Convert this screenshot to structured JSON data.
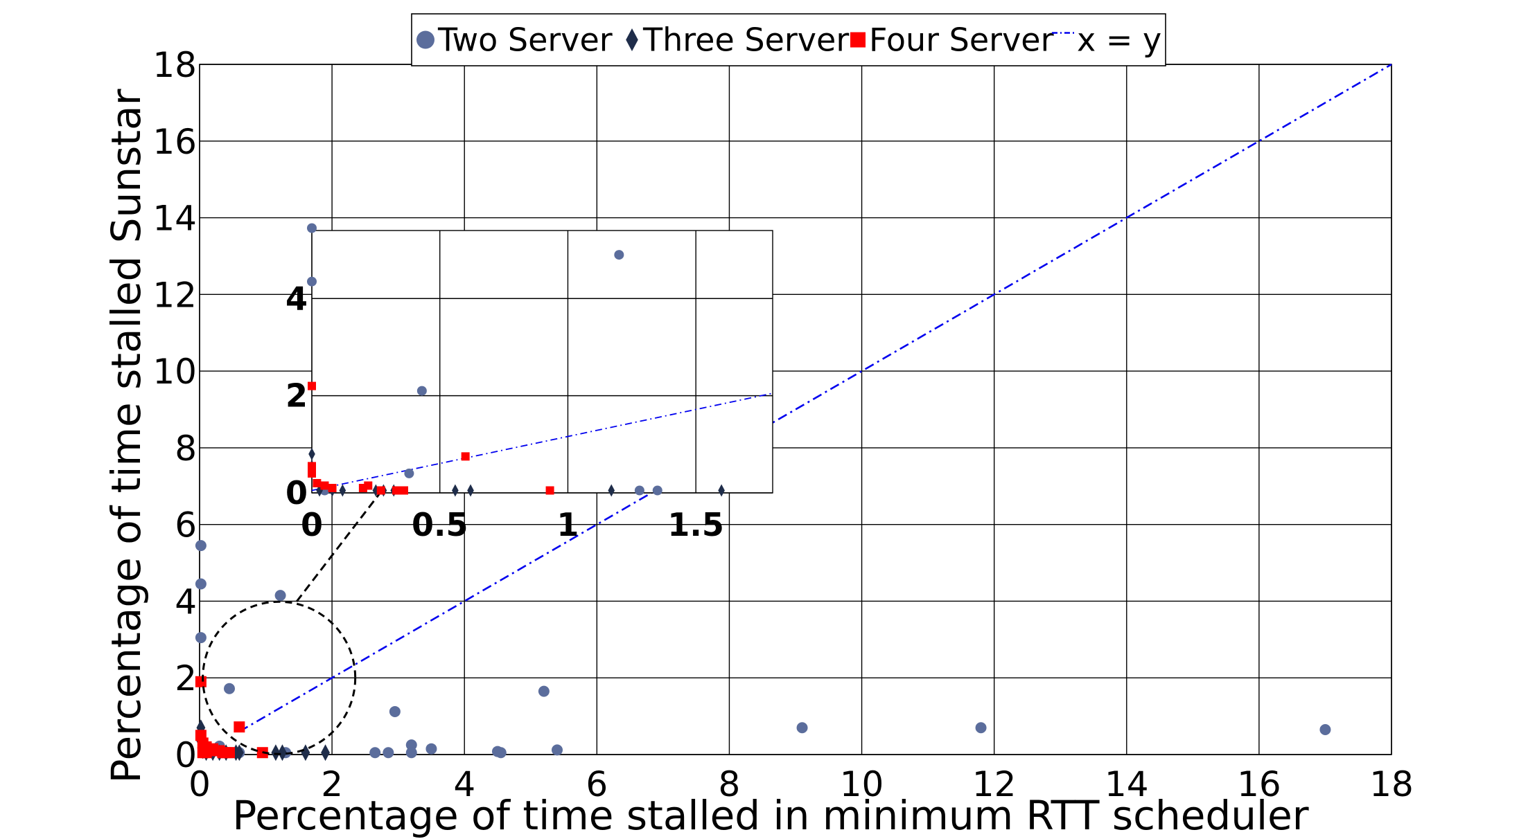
{
  "chart_data": {
    "type": "scatter",
    "xlabel": "Percentage of time stalled in minimum RTT scheduler",
    "ylabel": "Percentage of time stalled Sunstar",
    "xlim": [
      0,
      18
    ],
    "ylim": [
      0,
      18
    ],
    "xticks": [
      "0",
      "2",
      "4",
      "6",
      "8",
      "10",
      "12",
      "14",
      "16",
      "18"
    ],
    "yticks": [
      "0",
      "2",
      "4",
      "6",
      "8",
      "10",
      "12",
      "14",
      "16",
      "18"
    ],
    "grid": true,
    "legend_position": "top-center",
    "series": [
      {
        "name": "Two Server",
        "marker": "circle",
        "color": "#5b6d9c",
        "points": [
          [
            0.02,
            5.45
          ],
          [
            0.02,
            4.45
          ],
          [
            0.02,
            3.05
          ],
          [
            1.22,
            4.15
          ],
          [
            0.45,
            1.72
          ],
          [
            0.3,
            0.22
          ],
          [
            0.15,
            0.1
          ],
          [
            0.5,
            0.05
          ],
          [
            0.6,
            0.05
          ],
          [
            2.65,
            0.05
          ],
          [
            2.85,
            0.05
          ],
          [
            2.95,
            1.12
          ],
          [
            3.2,
            0.25
          ],
          [
            3.2,
            0.05
          ],
          [
            3.5,
            0.15
          ],
          [
            4.5,
            0.08
          ],
          [
            4.55,
            0.05
          ],
          [
            5.2,
            1.65
          ],
          [
            5.4,
            0.12
          ],
          [
            9.1,
            0.7
          ],
          [
            11.8,
            0.7
          ],
          [
            17.0,
            0.65
          ],
          [
            1.3,
            0.05
          ],
          [
            0.08,
            0.05
          ],
          [
            0.12,
            0.2
          ]
        ]
      },
      {
        "name": "Three Server",
        "marker": "diamond",
        "color": "#1f2d4a",
        "points": [
          [
            0.02,
            0.7
          ],
          [
            0.02,
            0.5
          ],
          [
            0.02,
            0.35
          ],
          [
            0.05,
            0.1
          ],
          [
            0.1,
            0.05
          ],
          [
            0.2,
            0.05
          ],
          [
            0.3,
            0.05
          ],
          [
            0.4,
            0.05
          ],
          [
            0.55,
            0.05
          ],
          [
            0.6,
            0.05
          ],
          [
            1.15,
            0.05
          ],
          [
            1.25,
            0.05
          ],
          [
            1.6,
            0.05
          ],
          [
            1.9,
            0.05
          ]
        ]
      },
      {
        "name": "Four Server",
        "marker": "square",
        "color": "#ff0000",
        "points": [
          [
            0.02,
            1.9
          ],
          [
            0.02,
            0.5
          ],
          [
            0.05,
            0.3
          ],
          [
            0.1,
            0.2
          ],
          [
            0.15,
            0.1
          ],
          [
            0.2,
            0.15
          ],
          [
            0.25,
            0.1
          ],
          [
            0.3,
            0.1
          ],
          [
            0.35,
            0.05
          ],
          [
            0.4,
            0.05
          ],
          [
            0.45,
            0.05
          ],
          [
            0.6,
            0.72
          ],
          [
            0.95,
            0.05
          ],
          [
            0.05,
            0.05
          ],
          [
            0.1,
            0.05
          ]
        ]
      },
      {
        "name": "x = y",
        "type": "line",
        "color": "#0000ee",
        "points": [
          [
            0.6,
            0.6
          ],
          [
            18,
            18
          ]
        ]
      }
    ],
    "inset": {
      "xlim": [
        0,
        1.8
      ],
      "ylim": [
        0,
        5.4
      ],
      "xticks": [
        {
          "v": 0,
          "label": "0"
        },
        {
          "v": 0.5,
          "label": "0.5"
        },
        {
          "v": 1,
          "label": "1"
        },
        {
          "v": 1.5,
          "label": "1.5"
        }
      ],
      "yticks": [
        {
          "v": 0,
          "label": "0"
        },
        {
          "v": 2,
          "label": "2"
        },
        {
          "v": 4,
          "label": "4"
        }
      ],
      "two_server": [
        [
          0,
          5.45
        ],
        [
          0,
          4.35
        ],
        [
          1.2,
          4.9
        ],
        [
          0.43,
          2.1
        ],
        [
          0.38,
          0.4
        ],
        [
          1.28,
          0.05
        ],
        [
          1.35,
          0.05
        ],
        [
          0.05,
          0.05
        ]
      ],
      "three_server": [
        [
          0,
          0.8
        ],
        [
          0,
          0.55
        ],
        [
          0.03,
          0.05
        ],
        [
          0.08,
          0.05
        ],
        [
          0.12,
          0.05
        ],
        [
          0.25,
          0.05
        ],
        [
          0.28,
          0.05
        ],
        [
          0.32,
          0.05
        ],
        [
          0.56,
          0.05
        ],
        [
          0.62,
          0.05
        ],
        [
          1.17,
          0.05
        ],
        [
          1.6,
          0.05
        ]
      ],
      "four_server": [
        [
          0,
          2.2
        ],
        [
          0,
          0.55
        ],
        [
          0,
          0.4
        ],
        [
          0.02,
          0.2
        ],
        [
          0.05,
          0.15
        ],
        [
          0.08,
          0.1
        ],
        [
          0.2,
          0.1
        ],
        [
          0.22,
          0.15
        ],
        [
          0.27,
          0.05
        ],
        [
          0.33,
          0.05
        ],
        [
          0.36,
          0.05
        ],
        [
          0.6,
          0.75
        ],
        [
          0.93,
          0.05
        ]
      ],
      "line": [
        [
          0,
          0.05
        ],
        [
          1.8,
          2.05
        ]
      ]
    }
  }
}
